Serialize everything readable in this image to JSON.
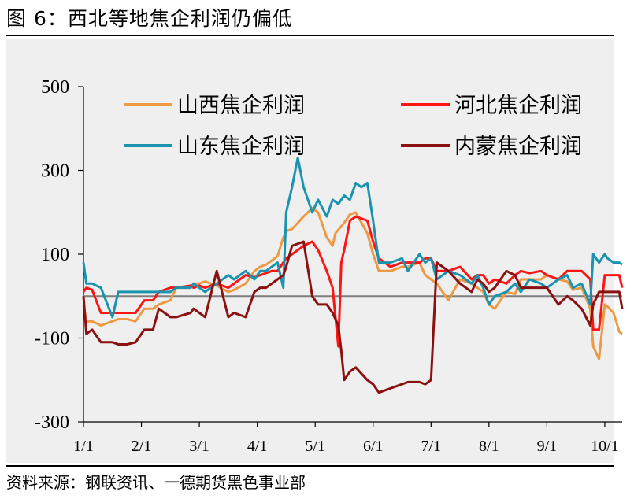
{
  "figure": {
    "title": "图 6：西北等地焦企利润仍偏低",
    "source": "资料来源：钢联资讯、一德期货黑色事业部"
  },
  "chart_data": {
    "type": "line",
    "title": "",
    "xlabel": "",
    "ylabel": "",
    "ylim": [
      -300,
      500
    ],
    "yticks": [
      -300,
      -100,
      100,
      300,
      500
    ],
    "y_tick_labels": [
      "-300",
      "-100",
      "100",
      "300",
      "500"
    ],
    "x_tick_labels": [
      "1/1",
      "2/1",
      "3/1",
      "4/1",
      "5/1",
      "6/1",
      "7/1",
      "8/1",
      "9/1",
      "10/1"
    ],
    "x_unit": "month (1 = Jan 1)",
    "xlim": [
      1,
      10.3
    ],
    "grid": false,
    "zero_line": true,
    "legend_position": "top",
    "series": [
      {
        "name": "山西焦企利润",
        "color": "#EE9A45",
        "points": [
          [
            1.0,
            -20
          ],
          [
            1.05,
            -60
          ],
          [
            1.15,
            -60
          ],
          [
            1.3,
            -70
          ],
          [
            1.5,
            -60
          ],
          [
            1.6,
            -55
          ],
          [
            1.75,
            -55
          ],
          [
            1.9,
            -60
          ],
          [
            2.05,
            -30
          ],
          [
            2.2,
            -30
          ],
          [
            2.3,
            -20
          ],
          [
            2.5,
            -10
          ],
          [
            2.6,
            20
          ],
          [
            2.85,
            20
          ],
          [
            2.9,
            30
          ],
          [
            3.0,
            30
          ],
          [
            3.1,
            35
          ],
          [
            3.3,
            25
          ],
          [
            3.5,
            10
          ],
          [
            3.6,
            15
          ],
          [
            3.8,
            30
          ],
          [
            3.95,
            60
          ],
          [
            4.05,
            70
          ],
          [
            4.15,
            75
          ],
          [
            4.25,
            85
          ],
          [
            4.35,
            95
          ],
          [
            4.45,
            140
          ],
          [
            4.5,
            155
          ],
          [
            4.6,
            160
          ],
          [
            4.8,
            190
          ],
          [
            4.95,
            210
          ],
          [
            5.05,
            200
          ],
          [
            5.2,
            140
          ],
          [
            5.3,
            120
          ],
          [
            5.35,
            150
          ],
          [
            5.5,
            175
          ],
          [
            5.6,
            195
          ],
          [
            5.7,
            200
          ],
          [
            5.9,
            150
          ],
          [
            6.0,
            100
          ],
          [
            6.1,
            60
          ],
          [
            6.3,
            60
          ],
          [
            6.5,
            70
          ],
          [
            6.6,
            70
          ],
          [
            6.8,
            80
          ],
          [
            6.9,
            50
          ],
          [
            7.0,
            40
          ],
          [
            7.1,
            30
          ],
          [
            7.3,
            -10
          ],
          [
            7.5,
            40
          ],
          [
            7.7,
            30
          ],
          [
            7.8,
            20
          ],
          [
            7.9,
            10
          ],
          [
            8.0,
            -20
          ],
          [
            8.1,
            -30
          ],
          [
            8.3,
            10
          ],
          [
            8.45,
            5
          ],
          [
            8.55,
            40
          ],
          [
            8.7,
            40
          ],
          [
            8.9,
            40
          ],
          [
            9.0,
            50
          ],
          [
            9.2,
            40
          ],
          [
            9.35,
            35
          ],
          [
            9.45,
            15
          ],
          [
            9.6,
            20
          ],
          [
            9.75,
            -30
          ],
          [
            9.8,
            -120
          ],
          [
            9.9,
            -150
          ],
          [
            10.0,
            -20
          ],
          [
            10.05,
            -25
          ],
          [
            10.15,
            -40
          ],
          [
            10.25,
            -85
          ],
          [
            10.3,
            -90
          ]
        ]
      },
      {
        "name": "河北焦企利润",
        "color": "#FF1414",
        "points": [
          [
            1.0,
            10
          ],
          [
            1.05,
            20
          ],
          [
            1.15,
            15
          ],
          [
            1.3,
            -40
          ],
          [
            1.5,
            -40
          ],
          [
            1.6,
            -40
          ],
          [
            1.75,
            -40
          ],
          [
            1.9,
            -40
          ],
          [
            2.05,
            -10
          ],
          [
            2.2,
            -10
          ],
          [
            2.3,
            10
          ],
          [
            2.5,
            20
          ],
          [
            2.6,
            20
          ],
          [
            2.85,
            25
          ],
          [
            2.9,
            20
          ],
          [
            3.0,
            25
          ],
          [
            3.1,
            20
          ],
          [
            3.3,
            30
          ],
          [
            3.5,
            20
          ],
          [
            3.6,
            30
          ],
          [
            3.8,
            50
          ],
          [
            3.95,
            45
          ],
          [
            4.05,
            50
          ],
          [
            4.15,
            55
          ],
          [
            4.25,
            60
          ],
          [
            4.35,
            60
          ],
          [
            4.45,
            80
          ],
          [
            4.5,
            90
          ],
          [
            4.6,
            100
          ],
          [
            4.8,
            120
          ],
          [
            4.95,
            130
          ],
          [
            5.05,
            110
          ],
          [
            5.2,
            60
          ],
          [
            5.3,
            20
          ],
          [
            5.4,
            -120
          ],
          [
            5.45,
            80
          ],
          [
            5.5,
            110
          ],
          [
            5.6,
            180
          ],
          [
            5.7,
            190
          ],
          [
            5.9,
            180
          ],
          [
            6.0,
            130
          ],
          [
            6.1,
            90
          ],
          [
            6.3,
            70
          ],
          [
            6.5,
            80
          ],
          [
            6.6,
            80
          ],
          [
            6.8,
            80
          ],
          [
            6.9,
            90
          ],
          [
            7.0,
            90
          ],
          [
            7.1,
            60
          ],
          [
            7.3,
            60
          ],
          [
            7.5,
            70
          ],
          [
            7.7,
            40
          ],
          [
            7.8,
            50
          ],
          [
            7.9,
            50
          ],
          [
            8.0,
            30
          ],
          [
            8.1,
            40
          ],
          [
            8.3,
            30
          ],
          [
            8.45,
            50
          ],
          [
            8.55,
            60
          ],
          [
            8.7,
            55
          ],
          [
            8.9,
            60
          ],
          [
            9.0,
            50
          ],
          [
            9.2,
            40
          ],
          [
            9.35,
            60
          ],
          [
            9.45,
            60
          ],
          [
            9.6,
            60
          ],
          [
            9.75,
            40
          ],
          [
            9.8,
            -80
          ],
          [
            9.9,
            -80
          ],
          [
            10.0,
            50
          ],
          [
            10.05,
            50
          ],
          [
            10.15,
            50
          ],
          [
            10.25,
            50
          ],
          [
            10.3,
            20
          ]
        ]
      },
      {
        "name": "山东焦企利润",
        "color": "#1A93AF",
        "points": [
          [
            1.0,
            80
          ],
          [
            1.05,
            30
          ],
          [
            1.15,
            30
          ],
          [
            1.3,
            20
          ],
          [
            1.5,
            -50
          ],
          [
            1.6,
            10
          ],
          [
            1.75,
            10
          ],
          [
            1.9,
            10
          ],
          [
            2.05,
            10
          ],
          [
            2.2,
            10
          ],
          [
            2.3,
            10
          ],
          [
            2.5,
            10
          ],
          [
            2.6,
            20
          ],
          [
            2.85,
            20
          ],
          [
            2.9,
            30
          ],
          [
            3.0,
            20
          ],
          [
            3.1,
            10
          ],
          [
            3.3,
            30
          ],
          [
            3.5,
            50
          ],
          [
            3.6,
            40
          ],
          [
            3.8,
            60
          ],
          [
            3.95,
            40
          ],
          [
            4.05,
            60
          ],
          [
            4.15,
            60
          ],
          [
            4.25,
            70
          ],
          [
            4.35,
            80
          ],
          [
            4.45,
            20
          ],
          [
            4.5,
            200
          ],
          [
            4.6,
            260
          ],
          [
            4.7,
            330
          ],
          [
            4.8,
            260
          ],
          [
            4.95,
            200
          ],
          [
            5.05,
            230
          ],
          [
            5.2,
            190
          ],
          [
            5.3,
            230
          ],
          [
            5.4,
            220
          ],
          [
            5.5,
            240
          ],
          [
            5.6,
            230
          ],
          [
            5.7,
            270
          ],
          [
            5.8,
            260
          ],
          [
            5.9,
            270
          ],
          [
            6.0,
            180
          ],
          [
            6.1,
            80
          ],
          [
            6.3,
            80
          ],
          [
            6.5,
            90
          ],
          [
            6.6,
            60
          ],
          [
            6.8,
            100
          ],
          [
            6.9,
            80
          ],
          [
            7.0,
            90
          ],
          [
            7.1,
            40
          ],
          [
            7.3,
            60
          ],
          [
            7.5,
            50
          ],
          [
            7.7,
            30
          ],
          [
            7.8,
            50
          ],
          [
            7.9,
            20
          ],
          [
            8.0,
            -20
          ],
          [
            8.1,
            0
          ],
          [
            8.3,
            10
          ],
          [
            8.45,
            30
          ],
          [
            8.55,
            10
          ],
          [
            8.7,
            40
          ],
          [
            8.9,
            30
          ],
          [
            9.0,
            20
          ],
          [
            9.2,
            40
          ],
          [
            9.35,
            50
          ],
          [
            9.45,
            20
          ],
          [
            9.6,
            30
          ],
          [
            9.75,
            -20
          ],
          [
            9.8,
            100
          ],
          [
            9.9,
            80
          ],
          [
            10.0,
            100
          ],
          [
            10.05,
            90
          ],
          [
            10.15,
            80
          ],
          [
            10.25,
            80
          ],
          [
            10.3,
            75
          ]
        ]
      },
      {
        "name": "内蒙焦企利润",
        "color": "#8B1010",
        "points": [
          [
            1.0,
            0
          ],
          [
            1.05,
            -90
          ],
          [
            1.15,
            -80
          ],
          [
            1.3,
            -110
          ],
          [
            1.5,
            -110
          ],
          [
            1.6,
            -115
          ],
          [
            1.75,
            -115
          ],
          [
            1.9,
            -110
          ],
          [
            2.05,
            -80
          ],
          [
            2.2,
            -80
          ],
          [
            2.3,
            -30
          ],
          [
            2.5,
            -50
          ],
          [
            2.6,
            -50
          ],
          [
            2.85,
            -40
          ],
          [
            2.9,
            -30
          ],
          [
            3.0,
            -40
          ],
          [
            3.1,
            -50
          ],
          [
            3.3,
            60
          ],
          [
            3.5,
            -50
          ],
          [
            3.6,
            -40
          ],
          [
            3.8,
            -50
          ],
          [
            3.95,
            10
          ],
          [
            4.05,
            20
          ],
          [
            4.15,
            20
          ],
          [
            4.25,
            30
          ],
          [
            4.35,
            40
          ],
          [
            4.45,
            50
          ],
          [
            4.5,
            70
          ],
          [
            4.6,
            120
          ],
          [
            4.8,
            130
          ],
          [
            4.95,
            0
          ],
          [
            5.05,
            -20
          ],
          [
            5.2,
            -20
          ],
          [
            5.3,
            -40
          ],
          [
            5.4,
            -70
          ],
          [
            5.45,
            -130
          ],
          [
            5.5,
            -200
          ],
          [
            5.6,
            -180
          ],
          [
            5.7,
            -170
          ],
          [
            5.9,
            -200
          ],
          [
            6.0,
            -210
          ],
          [
            6.1,
            -230
          ],
          [
            6.3,
            -220
          ],
          [
            6.5,
            -210
          ],
          [
            6.6,
            -205
          ],
          [
            6.8,
            -205
          ],
          [
            6.9,
            -210
          ],
          [
            7.0,
            -200
          ],
          [
            7.1,
            80
          ],
          [
            7.3,
            60
          ],
          [
            7.5,
            30
          ],
          [
            7.7,
            10
          ],
          [
            7.8,
            40
          ],
          [
            7.9,
            30
          ],
          [
            8.0,
            10
          ],
          [
            8.1,
            20
          ],
          [
            8.3,
            60
          ],
          [
            8.45,
            50
          ],
          [
            8.55,
            20
          ],
          [
            8.7,
            20
          ],
          [
            8.9,
            20
          ],
          [
            9.0,
            20
          ],
          [
            9.2,
            -20
          ],
          [
            9.35,
            0
          ],
          [
            9.45,
            -10
          ],
          [
            9.6,
            -30
          ],
          [
            9.75,
            -70
          ],
          [
            9.8,
            -20
          ],
          [
            9.9,
            10
          ],
          [
            10.0,
            10
          ],
          [
            10.05,
            10
          ],
          [
            10.15,
            10
          ],
          [
            10.25,
            10
          ],
          [
            10.3,
            -30
          ]
        ]
      }
    ]
  }
}
